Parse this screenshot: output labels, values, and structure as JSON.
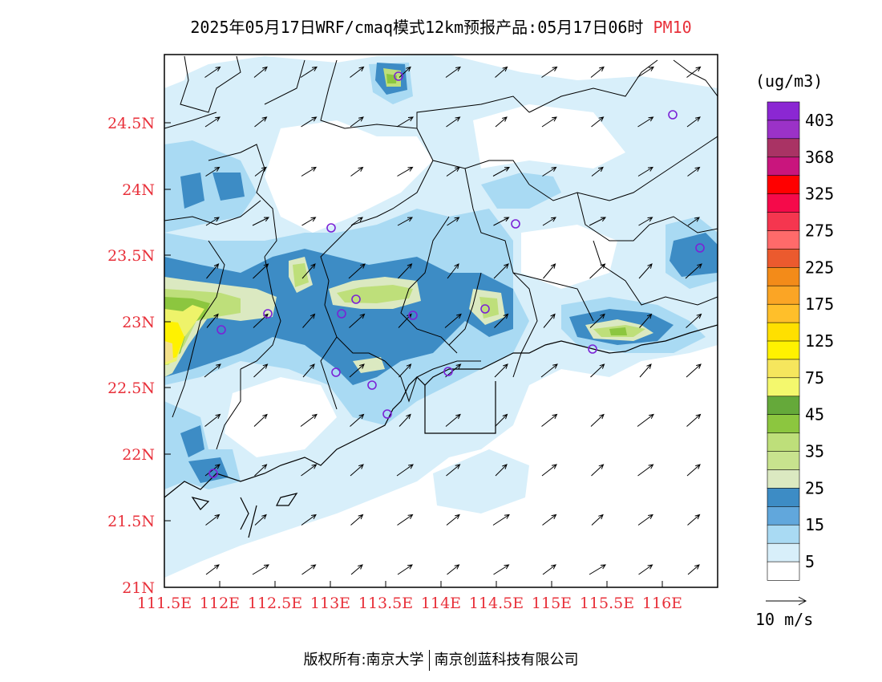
{
  "title": {
    "main": "2025年05月17日WRF/cmaq模式12km预报产品:05月17日06时",
    "pollutant": "PM10"
  },
  "map": {
    "lat_labels": [
      "24.5N",
      "24N",
      "23.5N",
      "23N",
      "22.5N",
      "22N",
      "21.5N",
      "21N"
    ],
    "lon_labels": [
      "111.5E",
      "112E",
      "112.5E",
      "113E",
      "113.5E",
      "114E",
      "114.5E",
      "115E",
      "115.5E",
      "116E"
    ],
    "colors": {
      "c5": "#d8effa",
      "c15": "#a9daf3",
      "c25": "#3d8cc5",
      "c35": "#dbe9c1",
      "c45": "#bedf7a",
      "c60": "#8cc63f",
      "c75": "#eef36a",
      "c100": "#fff200",
      "accent_red": "#e8303a",
      "station": "#7b22d6"
    }
  },
  "colorbar": {
    "unit": "(ug/m3)",
    "labels": [
      "403",
      "368",
      "325",
      "275",
      "225",
      "175",
      "125",
      "75",
      "45",
      "35",
      "25",
      "15",
      "5"
    ],
    "colors": [
      "#8b27d3",
      "#9b32c7",
      "#a93364",
      "#c9157d",
      "#ff0000",
      "#f50a4a",
      "#f5364f",
      "#ff6a6a",
      "#eb5a2e",
      "#f38b19",
      "#fba525",
      "#ffbf2a",
      "#ffe000",
      "#fff200",
      "#f6e65d",
      "#f4f86d",
      "#65a93a",
      "#8cc63f",
      "#bedf7a",
      "#c8e38e",
      "#dbe9c1",
      "#3d8cc5",
      "#61a7dc",
      "#a9daf3",
      "#d8effa",
      "#ffffff"
    ]
  },
  "wind_legend": {
    "label": "10 m/s"
  },
  "footer": {
    "left": "版权所有:南京大学",
    "right": "南京创蓝科技有限公司"
  }
}
